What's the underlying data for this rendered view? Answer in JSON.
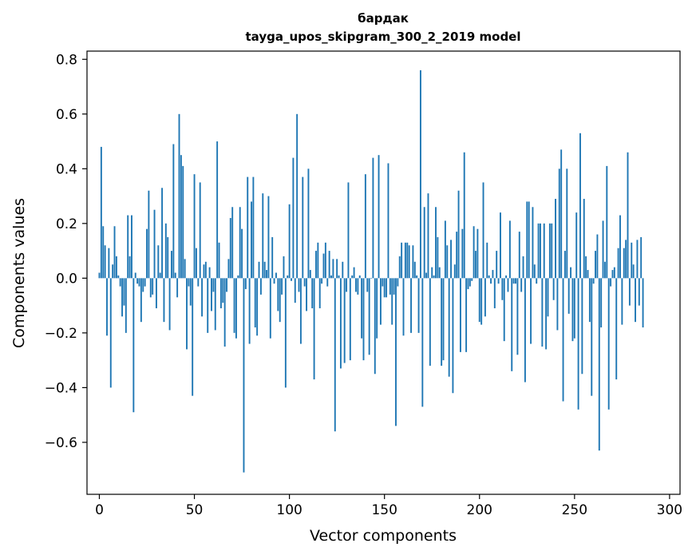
{
  "chart_data": {
    "type": "bar",
    "title_line1": "бардак",
    "title_line2": "tayga_upos_skipgram_300_2_2019 model",
    "xlabel": "Vector components",
    "ylabel": "Components values",
    "xlim": [
      -6.5,
      305.5
    ],
    "ylim": [
      -0.79,
      0.83
    ],
    "xticks": [
      0,
      50,
      100,
      150,
      200,
      250,
      300
    ],
    "xtick_labels": [
      "0",
      "50",
      "100",
      "150",
      "200",
      "250",
      "300"
    ],
    "yticks": [
      -0.6,
      -0.4,
      -0.2,
      0.0,
      0.2,
      0.4,
      0.6,
      0.8
    ],
    "ytick_labels": [
      "−0.6",
      "−0.4",
      "−0.2",
      "0.0",
      "0.2",
      "0.4",
      "0.6",
      "0.8"
    ],
    "bar_color": "#1f77b4",
    "values": [
      0.02,
      0.48,
      0.19,
      0.12,
      -0.21,
      0.11,
      -0.4,
      0.05,
      0.19,
      0.08,
      0.01,
      -0.03,
      -0.14,
      -0.1,
      -0.2,
      0.23,
      0.08,
      0.23,
      -0.49,
      0.02,
      -0.02,
      -0.03,
      -0.16,
      -0.05,
      -0.03,
      0.18,
      0.32,
      -0.07,
      -0.06,
      0.25,
      -0.11,
      0.12,
      0.02,
      0.33,
      -0.16,
      0.2,
      0.15,
      -0.19,
      0.1,
      0.49,
      0.02,
      -0.07,
      0.6,
      0.45,
      0.41,
      0.07,
      -0.26,
      -0.03,
      -0.1,
      -0.43,
      0.38,
      0.11,
      -0.03,
      0.35,
      -0.14,
      0.05,
      0.06,
      -0.2,
      0.04,
      -0.12,
      -0.05,
      -0.19,
      0.5,
      0.13,
      -0.11,
      -0.09,
      -0.25,
      -0.05,
      0.07,
      0.22,
      0.26,
      -0.2,
      -0.22,
      0.01,
      0.26,
      0.18,
      -0.71,
      -0.04,
      0.37,
      -0.24,
      0.28,
      0.37,
      -0.18,
      -0.21,
      0.06,
      -0.06,
      0.31,
      0.06,
      0.03,
      0.3,
      -0.22,
      0.15,
      -0.02,
      0.02,
      -0.12,
      -0.16,
      -0.06,
      0.08,
      -0.4,
      0.01,
      0.27,
      -0.01,
      0.44,
      -0.09,
      0.6,
      -0.05,
      -0.24,
      0.37,
      -0.03,
      -0.12,
      0.4,
      0.03,
      -0.11,
      -0.37,
      0.1,
      0.13,
      -0.11,
      -0.02,
      0.09,
      0.13,
      -0.03,
      0.1,
      0.01,
      0.07,
      -0.56,
      0.07,
      0.01,
      -0.33,
      0.06,
      -0.31,
      -0.05,
      0.35,
      -0.3,
      0.01,
      0.04,
      -0.05,
      -0.06,
      0.01,
      -0.22,
      -0.3,
      0.38,
      -0.05,
      -0.28,
      0.0,
      0.44,
      -0.35,
      -0.22,
      0.45,
      -0.17,
      -0.03,
      -0.07,
      -0.07,
      0.42,
      -0.06,
      -0.17,
      -0.06,
      -0.54,
      -0.03,
      0.08,
      0.13,
      -0.21,
      0.13,
      0.13,
      0.12,
      -0.2,
      0.12,
      0.06,
      0.01,
      -0.2,
      0.76,
      -0.47,
      0.26,
      0.02,
      0.31,
      -0.32,
      0.04,
      0.01,
      0.26,
      0.15,
      0.04,
      -0.32,
      -0.3,
      0.21,
      0.12,
      -0.36,
      0.14,
      -0.42,
      0.05,
      0.17,
      0.32,
      -0.27,
      0.18,
      0.46,
      -0.27,
      -0.04,
      -0.03,
      -0.01,
      0.19,
      0.1,
      0.18,
      -0.16,
      -0.17,
      0.35,
      -0.14,
      0.13,
      0.01,
      -0.02,
      0.03,
      -0.11,
      0.1,
      -0.02,
      0.24,
      -0.08,
      -0.23,
      0.01,
      -0.05,
      0.21,
      -0.34,
      -0.02,
      -0.02,
      -0.28,
      0.17,
      -0.05,
      0.08,
      -0.38,
      0.28,
      0.28,
      -0.24,
      0.26,
      0.05,
      -0.02,
      0.2,
      0.2,
      -0.25,
      0.2,
      -0.26,
      -0.14,
      0.2,
      0.2,
      -0.08,
      0.29,
      -0.19,
      0.4,
      0.47,
      -0.45,
      0.1,
      0.4,
      -0.13,
      0.04,
      -0.23,
      -0.22,
      0.24,
      -0.48,
      0.53,
      -0.35,
      0.29,
      0.08,
      0.03,
      -0.16,
      -0.43,
      -0.02,
      0.1,
      0.16,
      -0.63,
      -0.18,
      0.21,
      0.06,
      0.41,
      -0.48,
      -0.03,
      0.03,
      0.04,
      -0.37,
      0.11,
      0.23,
      -0.17,
      0.11,
      0.14,
      0.46,
      -0.1,
      0.13,
      0.05,
      -0.16,
      0.14,
      -0.1,
      0.15,
      -0.18
    ]
  }
}
